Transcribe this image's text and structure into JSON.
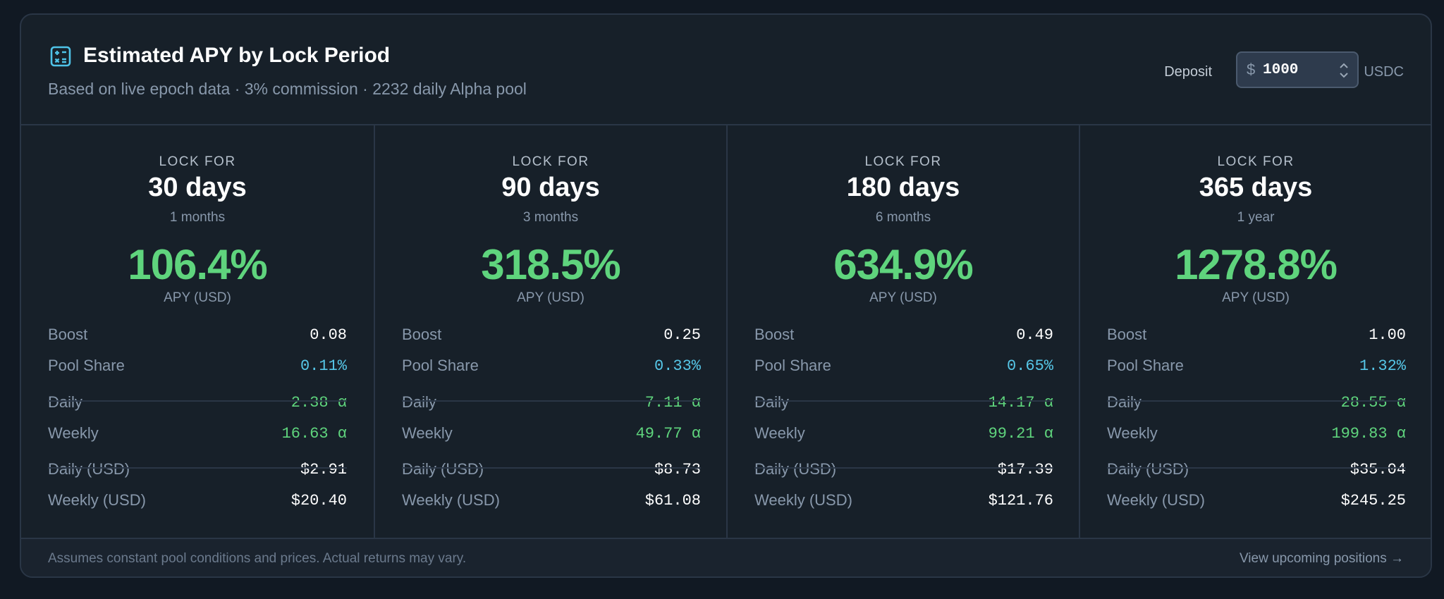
{
  "header": {
    "icon": "calculator-icon",
    "title": "Estimated APY by Lock Period",
    "subtitle": "Based on live epoch data · 3% commission · 2232 daily Alpha pool",
    "deposit_label": "Deposit",
    "deposit_currency": "$",
    "deposit_value": "1000",
    "deposit_unit": "USDC"
  },
  "labels": {
    "lock_for": "LOCK FOR",
    "apy_unit": "APY (USD)",
    "boost": "Boost",
    "pool_share": "Pool Share",
    "daily": "Daily",
    "weekly": "Weekly",
    "daily_usd": "Daily (USD)",
    "weekly_usd": "Weekly (USD)"
  },
  "periods": [
    {
      "days": "30 days",
      "months": "1 months",
      "apy": "106.4%",
      "boost": "0.08",
      "pool_share": "0.11%",
      "daily": "2.38 α",
      "weekly": "16.63 α",
      "daily_usd": "$2.91",
      "weekly_usd": "$20.40"
    },
    {
      "days": "90 days",
      "months": "3 months",
      "apy": "318.5%",
      "boost": "0.25",
      "pool_share": "0.33%",
      "daily": "7.11 α",
      "weekly": "49.77 α",
      "daily_usd": "$8.73",
      "weekly_usd": "$61.08"
    },
    {
      "days": "180 days",
      "months": "6 months",
      "apy": "634.9%",
      "boost": "0.49",
      "pool_share": "0.65%",
      "daily": "14.17 α",
      "weekly": "99.21 α",
      "daily_usd": "$17.39",
      "weekly_usd": "$121.76"
    },
    {
      "days": "365 days",
      "months": "1 year",
      "apy": "1278.8%",
      "boost": "1.00",
      "pool_share": "1.32%",
      "daily": "28.55 α",
      "weekly": "199.83 α",
      "daily_usd": "$35.04",
      "weekly_usd": "$245.25"
    }
  ],
  "footer": {
    "note": "Assumes constant pool conditions and prices. Actual returns may vary.",
    "link": "View upcoming positions →"
  },
  "colors": {
    "background": "#111923",
    "card": "#172029",
    "accent_green": "#5fd47d",
    "accent_cyan": "#56c7e8",
    "icon_cyan": "#4fc3e8"
  }
}
